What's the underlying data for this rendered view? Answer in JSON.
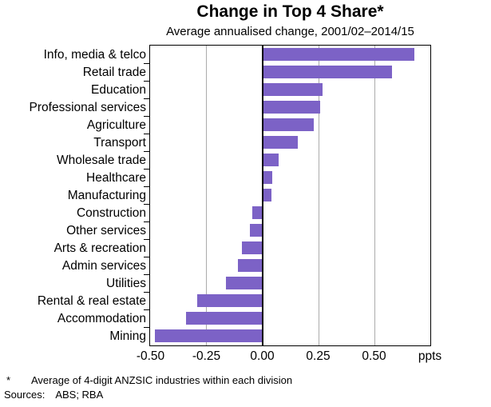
{
  "title": "Change in Top 4 Share*",
  "subtitle": "Average annualised change, 2001/02–2014/15",
  "footnote": {
    "marker": "*",
    "text": "Average of 4-digit ANZSIC industries within each division"
  },
  "sources": {
    "label": "Sources:",
    "text": "ABS; RBA"
  },
  "chart_data": {
    "type": "bar",
    "orientation": "horizontal",
    "title": "Change in Top 4 Share*",
    "subtitle": "Average annualised change, 2001/02–2014/15",
    "categories": [
      "Info, media & telco",
      "Retail trade",
      "Education",
      "Professional services",
      "Agriculture",
      "Transport",
      "Wholesale trade",
      "Healthcare",
      "Manufacturing",
      "Construction",
      "Other services",
      "Arts & recreation",
      "Admin services",
      "Utilities",
      "Rental & real estate",
      "Accommodation",
      "Mining"
    ],
    "values": [
      0.68,
      0.58,
      0.27,
      0.26,
      0.23,
      0.16,
      0.075,
      0.045,
      0.04,
      -0.045,
      -0.055,
      -0.09,
      -0.11,
      -0.16,
      -0.29,
      -0.34,
      -0.48
    ],
    "unit": "ppts",
    "xlim": [
      -0.5,
      0.75
    ],
    "xticks": [
      {
        "value": -0.5,
        "label": "-0.50"
      },
      {
        "value": -0.25,
        "label": "-0.25"
      },
      {
        "value": 0.0,
        "label": "0.00"
      },
      {
        "value": 0.25,
        "label": "0.25"
      },
      {
        "value": 0.5,
        "label": "0.50"
      },
      {
        "value": 0.75,
        "label": "ppts"
      }
    ],
    "gridlines": [
      -0.25,
      0.25,
      0.5
    ],
    "grid": true,
    "legend": "none",
    "bar_color": "#7C62C6",
    "gridline_color": "#ABABAB",
    "axis_color": "#000000"
  }
}
